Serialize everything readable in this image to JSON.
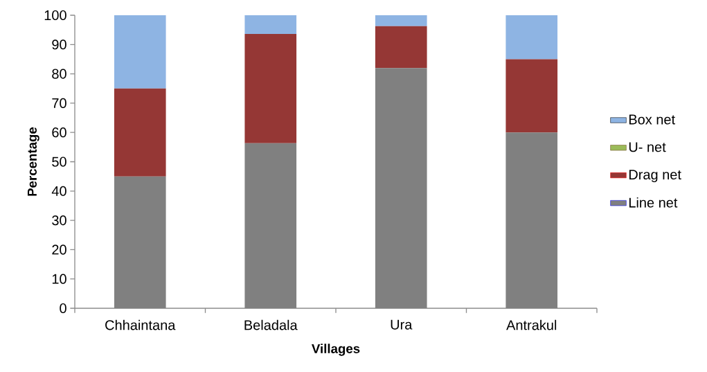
{
  "chart_data": {
    "type": "bar",
    "stacked": true,
    "xlabel": "Villages",
    "ylabel": "Percentage",
    "categories": [
      "Chhaintana",
      "Beladala",
      "Ura",
      "Antrakul"
    ],
    "series": [
      {
        "name": "Line net",
        "color": "#808080",
        "values": [
          45,
          56.3,
          82,
          60
        ]
      },
      {
        "name": "Drag net",
        "color": "#953735",
        "values": [
          30,
          37.3,
          14.3,
          25
        ]
      },
      {
        "name": "U- net",
        "color": "#9bbb59",
        "values": [
          0,
          0,
          0,
          0
        ]
      },
      {
        "name": "Box net",
        "color": "#8eb4e3",
        "values": [
          25,
          6.4,
          3.7,
          15
        ]
      }
    ],
    "ylim": [
      0,
      100
    ],
    "yticks": [
      0,
      10,
      20,
      30,
      40,
      50,
      60,
      70,
      80,
      90,
      100
    ],
    "grid": false,
    "legend": "right"
  }
}
